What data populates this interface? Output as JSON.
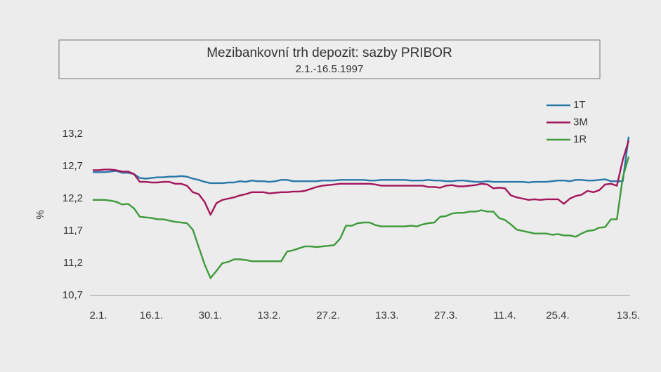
{
  "chart_data": {
    "type": "line",
    "title": "Mezibankovní trh depozit: sazby PRIBOR",
    "subtitle": "2.1.-16.5.1997",
    "y_label": "%",
    "legend": "upper right",
    "grid": false,
    "categories": [
      "2.1.",
      null,
      null,
      null,
      null,
      null,
      null,
      null,
      null,
      "16.1.",
      null,
      null,
      null,
      null,
      null,
      null,
      null,
      null,
      null,
      "30.1.",
      null,
      null,
      null,
      null,
      null,
      null,
      null,
      null,
      null,
      "13.2.",
      null,
      null,
      null,
      null,
      null,
      null,
      null,
      null,
      null,
      "27.2.",
      null,
      null,
      null,
      null,
      null,
      null,
      null,
      null,
      null,
      "13.3.",
      null,
      null,
      null,
      null,
      null,
      null,
      null,
      null,
      null,
      "27.3.",
      null,
      null,
      null,
      null,
      null,
      null,
      null,
      null,
      null,
      "11.4.",
      null,
      null,
      null,
      null,
      null,
      null,
      null,
      null,
      "25.4.",
      null,
      null,
      null,
      null,
      null,
      null,
      null,
      null,
      null,
      null,
      null,
      "13.5.",
      null
    ],
    "ylim": [
      10.7,
      13.2
    ],
    "yticks": [
      {
        "value": 10.7,
        "label": "10,7"
      },
      {
        "value": 11.2,
        "label": "11,2"
      },
      {
        "value": 11.7,
        "label": "11,7"
      },
      {
        "value": 12.2,
        "label": "12,2"
      },
      {
        "value": 12.7,
        "label": "12,7"
      },
      {
        "value": 13.2,
        "label": "13,2"
      }
    ],
    "series": [
      {
        "name": "1T",
        "color": "#2878a8",
        "values": [
          12.61,
          12.61,
          12.61,
          12.62,
          12.63,
          12.6,
          12.6,
          12.58,
          12.52,
          12.51,
          12.52,
          12.53,
          12.53,
          12.54,
          12.54,
          12.55,
          12.54,
          12.51,
          12.49,
          12.46,
          12.44,
          12.44,
          12.44,
          12.45,
          12.45,
          12.47,
          12.46,
          12.48,
          12.47,
          12.47,
          12.46,
          12.47,
          12.49,
          12.49,
          12.47,
          12.47,
          12.47,
          12.47,
          12.47,
          12.48,
          12.48,
          12.48,
          12.49,
          12.49,
          12.49,
          12.49,
          12.49,
          12.48,
          12.48,
          12.49,
          12.49,
          12.49,
          12.49,
          12.49,
          12.48,
          12.48,
          12.48,
          12.49,
          12.48,
          12.48,
          12.47,
          12.47,
          12.48,
          12.48,
          12.47,
          12.46,
          12.46,
          12.47,
          12.46,
          12.46,
          12.46,
          12.46,
          12.46,
          12.46,
          12.45,
          12.46,
          12.46,
          12.46,
          12.47,
          12.48,
          12.48,
          12.47,
          12.49,
          12.49,
          12.48,
          12.48,
          12.49,
          12.5,
          12.47,
          12.47,
          12.47,
          13.16
        ]
      },
      {
        "name": "3M",
        "color": "#a3165c",
        "values": [
          12.64,
          12.64,
          12.65,
          12.65,
          12.64,
          12.62,
          12.62,
          12.58,
          12.46,
          12.46,
          12.45,
          12.45,
          12.46,
          12.46,
          12.43,
          12.43,
          12.4,
          12.3,
          12.27,
          12.15,
          11.95,
          12.13,
          12.18,
          12.2,
          12.22,
          12.25,
          12.27,
          12.3,
          12.3,
          12.3,
          12.28,
          12.29,
          12.3,
          12.3,
          12.31,
          12.31,
          12.32,
          12.35,
          12.38,
          12.4,
          12.41,
          12.42,
          12.43,
          12.43,
          12.43,
          12.43,
          12.43,
          12.43,
          12.42,
          12.4,
          12.4,
          12.4,
          12.4,
          12.4,
          12.4,
          12.4,
          12.4,
          12.38,
          12.38,
          12.37,
          12.4,
          12.41,
          12.39,
          12.39,
          12.4,
          12.41,
          12.43,
          12.42,
          12.36,
          12.37,
          12.36,
          12.25,
          12.22,
          12.2,
          12.18,
          12.19,
          12.18,
          12.19,
          12.19,
          12.19,
          12.12,
          12.2,
          12.24,
          12.26,
          12.32,
          12.3,
          12.33,
          12.42,
          12.43,
          12.4,
          12.8,
          13.1
        ]
      },
      {
        "name": "1R",
        "color": "#3e9a3a",
        "values": [
          12.18,
          12.18,
          12.18,
          12.17,
          12.15,
          12.11,
          12.12,
          12.05,
          11.92,
          11.91,
          11.9,
          11.88,
          11.88,
          11.86,
          11.84,
          11.83,
          11.82,
          11.72,
          11.45,
          11.18,
          10.97,
          11.08,
          11.2,
          11.22,
          11.26,
          11.26,
          11.25,
          11.23,
          11.23,
          11.23,
          11.23,
          11.23,
          11.23,
          11.38,
          11.4,
          11.43,
          11.46,
          11.46,
          11.45,
          11.46,
          11.47,
          11.48,
          11.58,
          11.78,
          11.78,
          11.82,
          11.83,
          11.83,
          11.79,
          11.77,
          11.77,
          11.77,
          11.77,
          11.77,
          11.78,
          11.77,
          11.8,
          11.82,
          11.83,
          11.92,
          11.93,
          11.97,
          11.98,
          11.98,
          12.0,
          12.0,
          12.02,
          12.0,
          12.0,
          11.9,
          11.87,
          11.8,
          11.72,
          11.7,
          11.68,
          11.66,
          11.66,
          11.66,
          11.64,
          11.65,
          11.63,
          11.63,
          11.61,
          11.66,
          11.7,
          11.71,
          11.75,
          11.76,
          11.88,
          11.88,
          12.53,
          12.85
        ]
      }
    ]
  }
}
